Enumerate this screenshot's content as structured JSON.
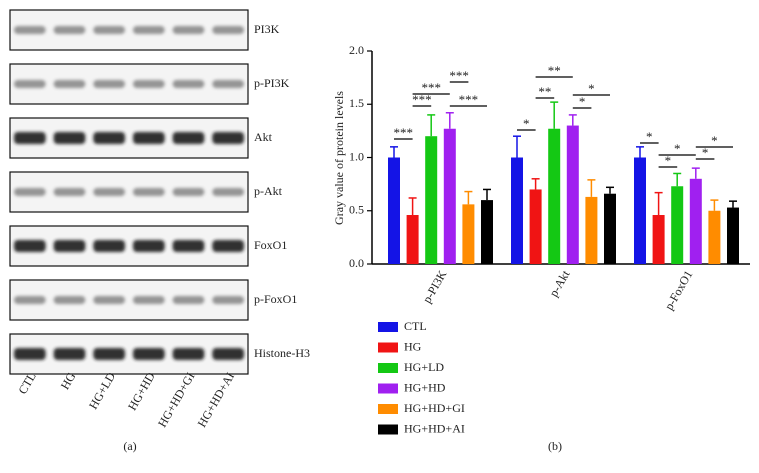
{
  "blot": {
    "proteins": [
      "PI3K",
      "p-PI3K",
      "Akt",
      "p-Akt",
      "FoxO1",
      "p-FoxO1",
      "Histone-H3"
    ],
    "lanes": [
      "CTL",
      "HG",
      "HG+LD",
      "HG+HD",
      "HG+HD+GI",
      "HG+HD+AI"
    ],
    "caption": "(a)"
  },
  "chart_data": {
    "type": "bar",
    "caption": "(b)",
    "ylabel": "Gray value of protein levels",
    "categories": [
      "p-PI3K",
      "p-Akt",
      "p-FoxO1"
    ],
    "series": [
      {
        "name": "CTL",
        "color": "#1414e6",
        "values": [
          1.0,
          1.0,
          1.0
        ],
        "errors": [
          0.1,
          0.2,
          0.1
        ]
      },
      {
        "name": "HG",
        "color": "#f01414",
        "values": [
          0.46,
          0.7,
          0.46
        ],
        "errors": [
          0.16,
          0.1,
          0.21
        ]
      },
      {
        "name": "HG+LD",
        "color": "#14c814",
        "values": [
          1.2,
          1.27,
          0.73
        ],
        "errors": [
          0.2,
          0.25,
          0.12
        ]
      },
      {
        "name": "HG+HD",
        "color": "#a020f0",
        "values": [
          1.27,
          1.3,
          0.8
        ],
        "errors": [
          0.15,
          0.1,
          0.1
        ]
      },
      {
        "name": "HG+HD+GI",
        "color": "#ff8c00",
        "values": [
          0.56,
          0.63,
          0.5
        ],
        "errors": [
          0.12,
          0.16,
          0.1
        ]
      },
      {
        "name": "HG+HD+AI",
        "color": "#000000",
        "values": [
          0.6,
          0.66,
          0.53
        ],
        "errors": [
          0.1,
          0.06,
          0.06
        ]
      }
    ],
    "ylim": [
      0,
      2
    ],
    "yticks": [
      {
        "value": 0,
        "label": "0.0"
      },
      {
        "value": 0.5,
        "label": "0.5"
      },
      {
        "value": 1,
        "label": "1.0"
      },
      {
        "value": 1.5,
        "label": "1.5"
      },
      {
        "value": 2,
        "label": "2.0"
      }
    ],
    "annotations": [
      "***",
      "***",
      "***",
      "***",
      "***",
      "*",
      "**",
      "**",
      "*",
      "*",
      "*",
      "*",
      "*",
      "*",
      "*"
    ]
  }
}
